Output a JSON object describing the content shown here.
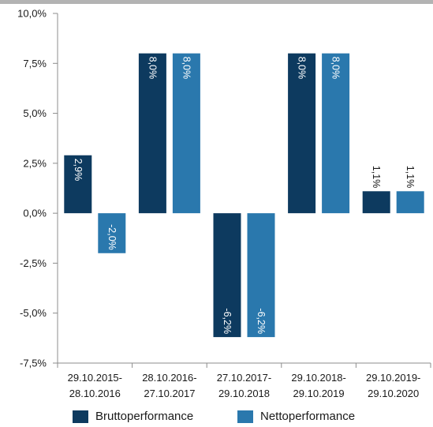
{
  "chart_data": {
    "type": "bar",
    "categories": [
      [
        "29.10.2015-",
        "28.10.2016"
      ],
      [
        "28.10.2016-",
        "27.10.2017"
      ],
      [
        "27.10.2017-",
        "29.10.2018"
      ],
      [
        "29.10.2018-",
        "29.10.2019"
      ],
      [
        "29.10.2019-",
        "29.10.2020"
      ]
    ],
    "series": [
      {
        "name": "Bruttoperformance",
        "color": "#0d3a5f",
        "values": [
          2.9,
          8.0,
          -6.2,
          8.0,
          1.1
        ],
        "labels": [
          "2,9%",
          "8,0%",
          "-6,2%",
          "8,0%",
          "1,1%"
        ]
      },
      {
        "name": "Nettoperformance",
        "color": "#2a78ad",
        "values": [
          -2.0,
          8.0,
          -6.2,
          8.0,
          1.1
        ],
        "labels": [
          "-2,0%",
          "8,0%",
          "-6,2%",
          "8,0%",
          "1,1%"
        ]
      }
    ],
    "ylim": [
      -7.5,
      10.0
    ],
    "yticks": [
      10.0,
      7.5,
      5.0,
      2.5,
      0.0,
      -2.5,
      -5.0,
      -7.5
    ],
    "ytick_labels": [
      "10,0%",
      "7,5%",
      "5,0%",
      "2,5%",
      "0,0%",
      "-2,5%",
      "-5,0%",
      "-7,5%"
    ],
    "grid": false,
    "legend_position": "bottom"
  }
}
